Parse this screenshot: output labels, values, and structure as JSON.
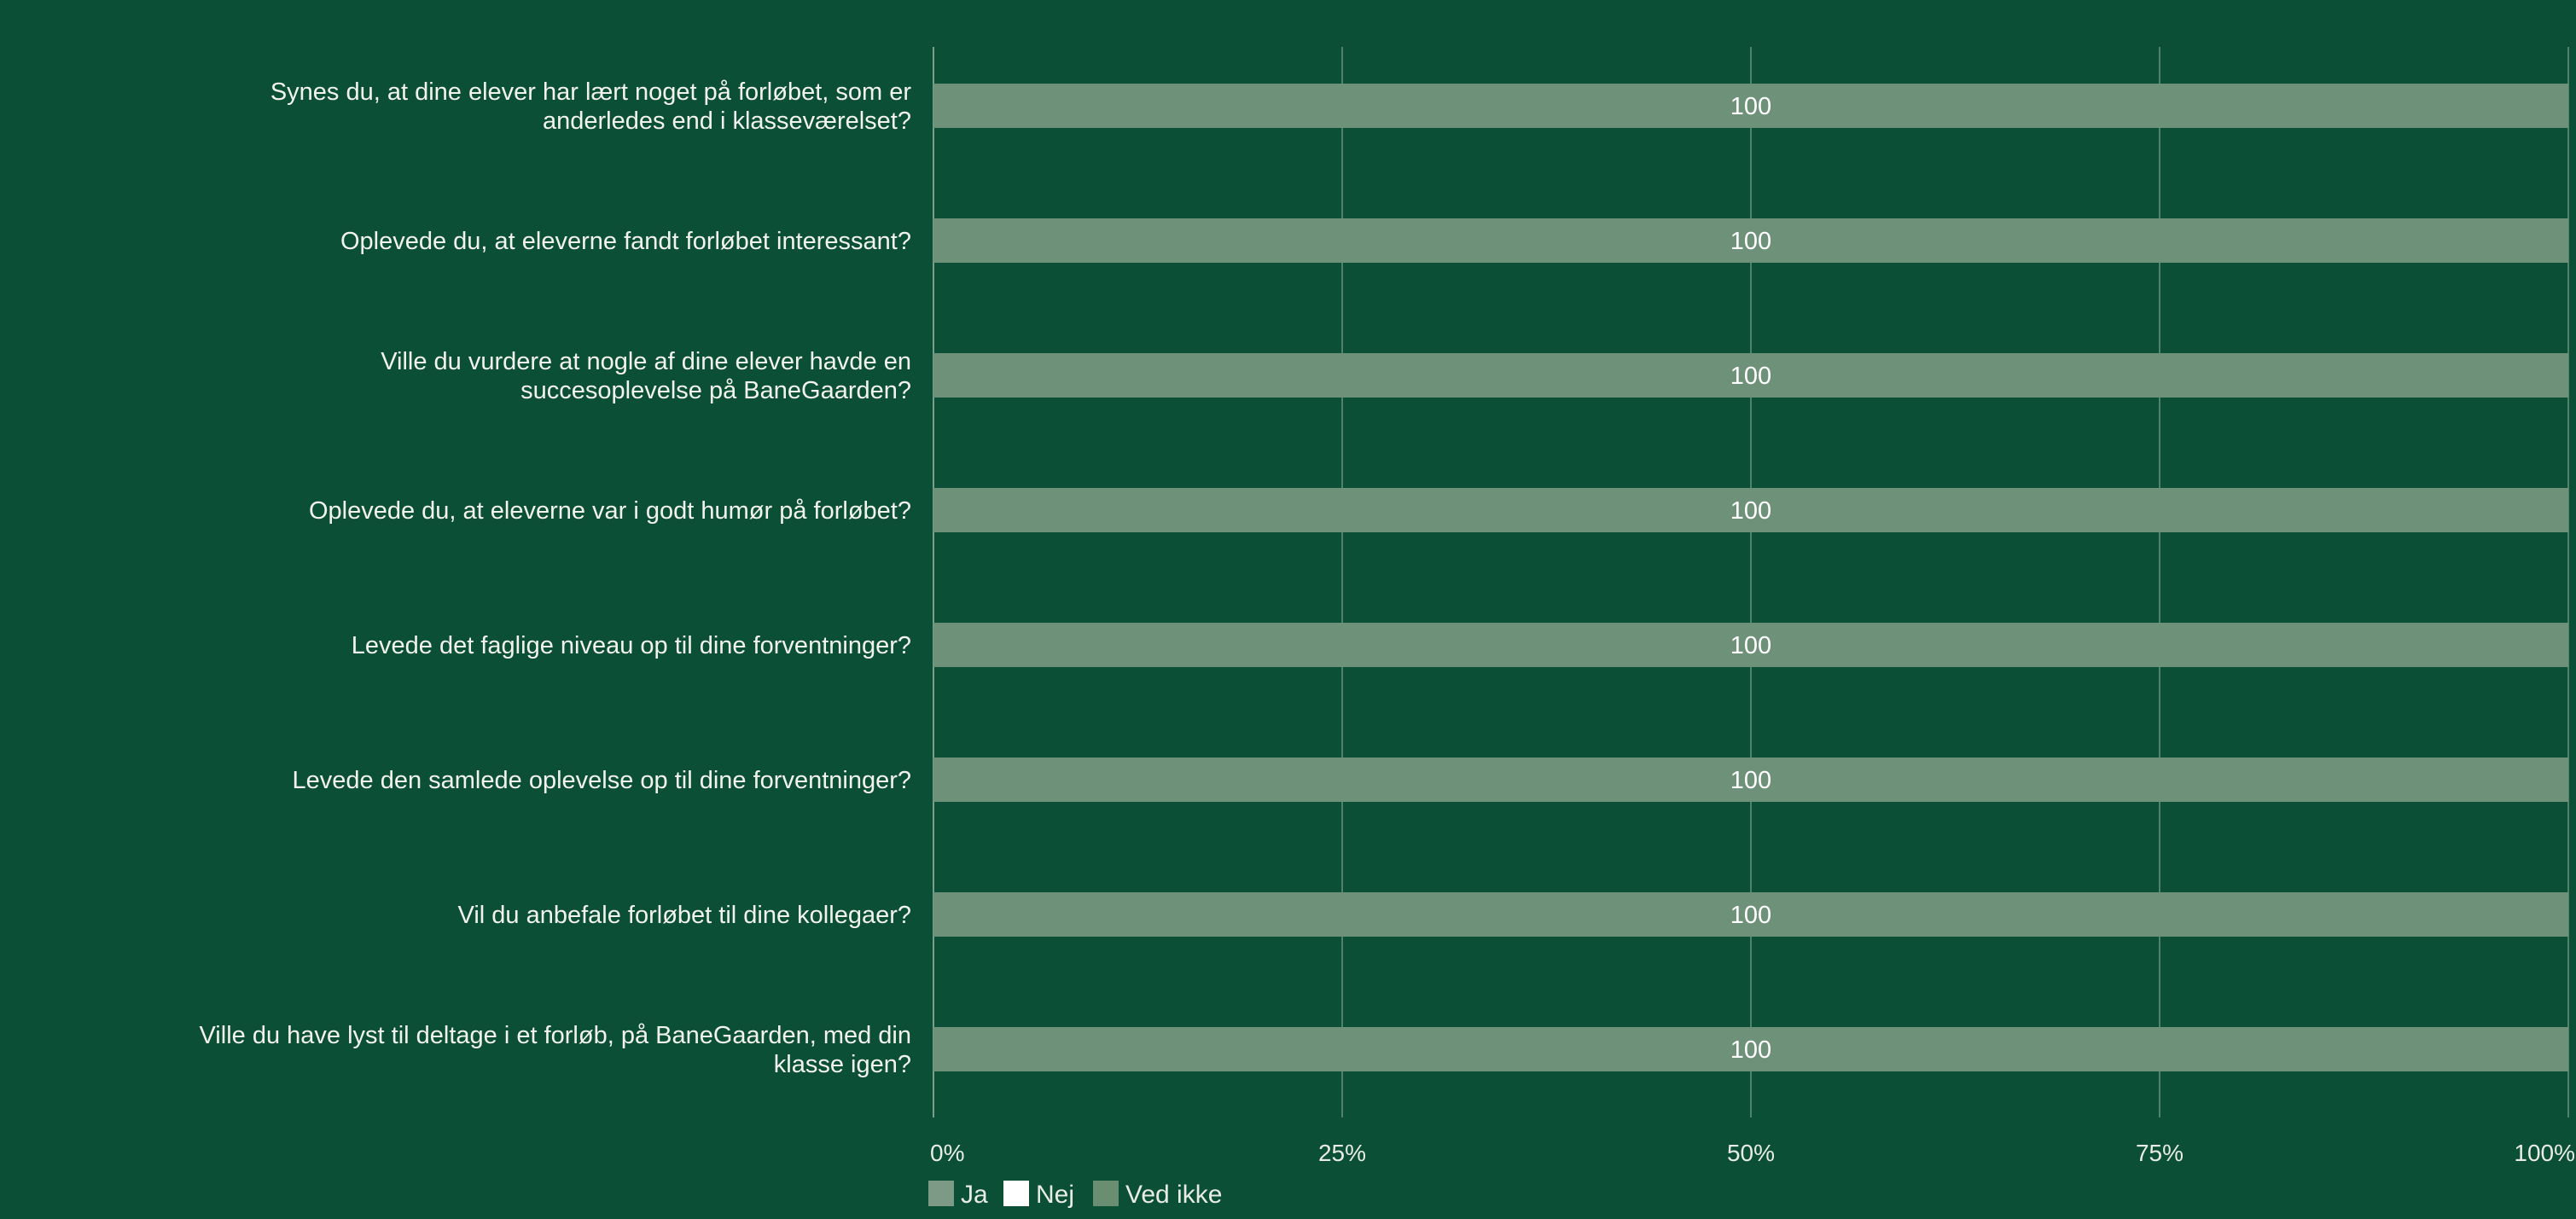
{
  "chart_data": {
    "type": "bar",
    "orientation": "horizontal",
    "stacked": true,
    "categories": [
      [
        "Synes du, at dine elever har lært noget på forløbet, som er",
        "anderledes end i klasseværelset?"
      ],
      [
        "Oplevede du, at eleverne fandt forløbet interessant?"
      ],
      [
        "Ville du vurdere at nogle af dine elever havde en",
        "succesoplevelse på BaneGaarden?"
      ],
      [
        "Oplevede du, at eleverne var i godt humør på forløbet?"
      ],
      [
        "Levede det faglige niveau op til dine forventninger?"
      ],
      [
        "Levede den samlede oplevelse op til dine forventninger?"
      ],
      [
        "Vil du anbefale forløbet til dine kollegaer?"
      ],
      [
        "Ville du have lyst til deltage i et forløb, på BaneGaarden, med din",
        "klasse igen?"
      ]
    ],
    "series": [
      {
        "name": "Ja",
        "color": "#6e917a",
        "values": [
          100,
          100,
          100,
          100,
          100,
          100,
          100,
          100
        ]
      },
      {
        "name": "Nej",
        "color": "#ffffff",
        "values": [
          0,
          0,
          0,
          0,
          0,
          0,
          0,
          0
        ]
      },
      {
        "name": "Ved ikke",
        "color": "#6a8e72",
        "values": [
          0,
          0,
          0,
          0,
          0,
          0,
          0,
          0
        ]
      }
    ],
    "data_labels": [
      "100",
      "100",
      "100",
      "100",
      "100",
      "100",
      "100",
      "100"
    ],
    "xlim": [
      0,
      100
    ],
    "xticks": [
      "0%",
      "25%",
      "50%",
      "75%",
      "100%"
    ],
    "xtick_values": [
      0,
      25,
      50,
      75,
      100
    ],
    "grid": true,
    "legend_position": "bottom-left",
    "title": "",
    "xlabel": "",
    "ylabel": "",
    "colors": {
      "background": "#0b4f36",
      "grid": "#8aa595",
      "bar": "#6e917a"
    }
  }
}
